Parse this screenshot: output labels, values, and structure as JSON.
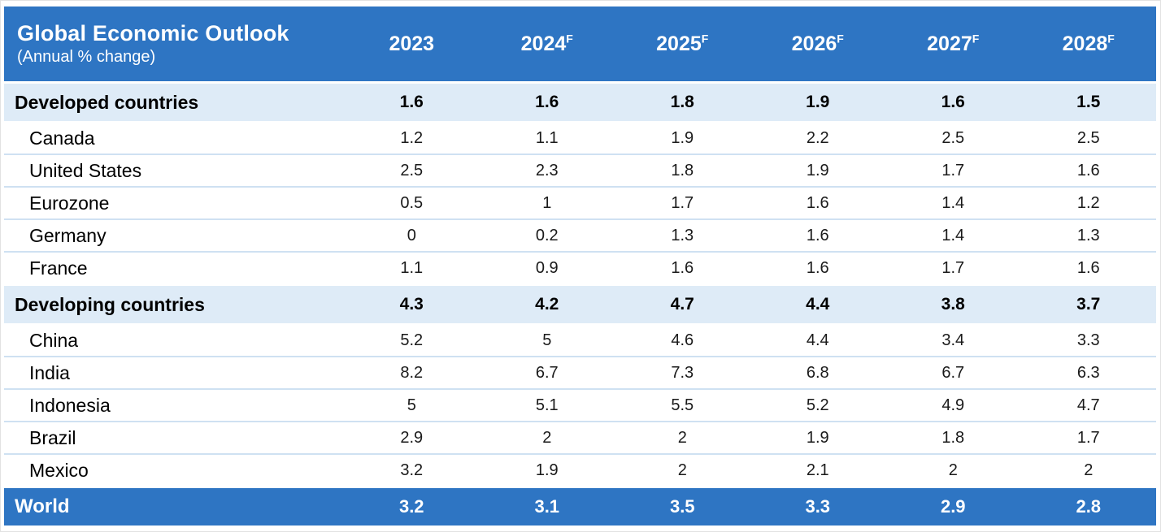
{
  "chart_data": {
    "type": "table",
    "title": "Global Economic Outlook",
    "subtitle": "(Annual % change)",
    "columns": [
      "2023",
      "2024F",
      "2025F",
      "2026F",
      "2027F",
      "2028F"
    ],
    "rows": [
      {
        "label": "Developed countries",
        "type": "section",
        "values": [
          "1.6",
          "1.6",
          "1.8",
          "1.9",
          "1.6",
          "1.5"
        ]
      },
      {
        "label": "Canada",
        "type": "country",
        "values": [
          "1.2",
          "1.1",
          "1.9",
          "2.2",
          "2.5",
          "2.5"
        ]
      },
      {
        "label": "United States",
        "type": "country",
        "values": [
          "2.5",
          "2.3",
          "1.8",
          "1.9",
          "1.7",
          "1.6"
        ]
      },
      {
        "label": "Eurozone",
        "type": "country",
        "values": [
          "0.5",
          "1",
          "1.7",
          "1.6",
          "1.4",
          "1.2"
        ]
      },
      {
        "label": "Germany",
        "type": "country",
        "values": [
          "0",
          "0.2",
          "1.3",
          "1.6",
          "1.4",
          "1.3"
        ]
      },
      {
        "label": "France",
        "type": "country",
        "values": [
          "1.1",
          "0.9",
          "1.6",
          "1.6",
          "1.7",
          "1.6"
        ]
      },
      {
        "label": "Developing countries",
        "type": "section",
        "values": [
          "4.3",
          "4.2",
          "4.7",
          "4.4",
          "3.8",
          "3.7"
        ]
      },
      {
        "label": "China",
        "type": "country",
        "values": [
          "5.2",
          "5",
          "4.6",
          "4.4",
          "3.4",
          "3.3"
        ]
      },
      {
        "label": "India",
        "type": "country",
        "values": [
          "8.2",
          "6.7",
          "7.3",
          "6.8",
          "6.7",
          "6.3"
        ]
      },
      {
        "label": "Indonesia",
        "type": "country",
        "values": [
          "5",
          "5.1",
          "5.5",
          "5.2",
          "4.9",
          "4.7"
        ]
      },
      {
        "label": "Brazil",
        "type": "country",
        "values": [
          "2.9",
          "2",
          "2",
          "1.9",
          "1.8",
          "1.7"
        ]
      },
      {
        "label": "Mexico",
        "type": "country",
        "values": [
          "3.2",
          "1.9",
          "2",
          "2.1",
          "2",
          "2"
        ]
      },
      {
        "label": "World",
        "type": "world",
        "values": [
          "3.2",
          "3.1",
          "3.5",
          "3.3",
          "2.9",
          "2.8"
        ]
      }
    ]
  },
  "colors": {
    "header_bg": "#2E75C3",
    "section_bg": "#DEEBF7",
    "row_divider": "#CFE1F2",
    "header_text": "#FFFFFF",
    "body_text": "#1A1A1A"
  }
}
